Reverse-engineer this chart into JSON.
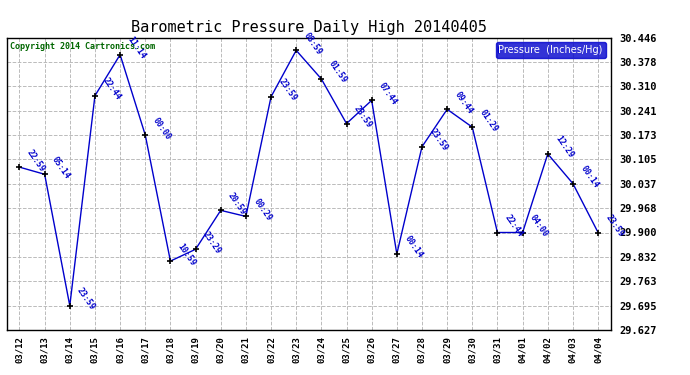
{
  "title": "Barometric Pressure Daily High 20140405",
  "copyright": "Copyright 2014 Cartronics.com",
  "legend_label": "Pressure  (Inches/Hg)",
  "ylim": [
    29.627,
    30.446
  ],
  "yticks": [
    29.627,
    29.695,
    29.763,
    29.832,
    29.9,
    29.968,
    30.037,
    30.105,
    30.173,
    30.241,
    30.31,
    30.378,
    30.446
  ],
  "background_color": "#ffffff",
  "line_color": "#0000cc",
  "marker_color": "#000000",
  "grid_color": "#bbbbbb",
  "x_labels": [
    "03/12",
    "03/13",
    "03/14",
    "03/15",
    "03/16",
    "03/17",
    "03/18",
    "03/19",
    "03/20",
    "03/21",
    "03/22",
    "03/23",
    "03/24",
    "03/25",
    "03/26",
    "03/27",
    "03/28",
    "03/29",
    "03/30",
    "03/31",
    "04/01",
    "04/02",
    "04/03",
    "04/04"
  ],
  "data_points": [
    {
      "date": "03/12",
      "value": 30.083,
      "label": "22:59"
    },
    {
      "date": "03/13",
      "value": 30.063,
      "label": "05:14"
    },
    {
      "date": "03/14",
      "value": 29.695,
      "label": "23:59"
    },
    {
      "date": "03/15",
      "value": 30.283,
      "label": "22:44"
    },
    {
      "date": "03/16",
      "value": 30.398,
      "label": "11:14"
    },
    {
      "date": "03/17",
      "value": 30.173,
      "label": "00:00"
    },
    {
      "date": "03/18",
      "value": 29.82,
      "label": "10:59"
    },
    {
      "date": "03/19",
      "value": 29.853,
      "label": "23:29"
    },
    {
      "date": "03/20",
      "value": 29.962,
      "label": "20:59"
    },
    {
      "date": "03/21",
      "value": 29.945,
      "label": "00:29"
    },
    {
      "date": "03/22",
      "value": 30.28,
      "label": "23:59"
    },
    {
      "date": "03/23",
      "value": 30.41,
      "label": "08:59"
    },
    {
      "date": "03/24",
      "value": 30.33,
      "label": "01:59"
    },
    {
      "date": "03/25",
      "value": 30.205,
      "label": "23:59"
    },
    {
      "date": "03/26",
      "value": 30.27,
      "label": "07:44"
    },
    {
      "date": "03/27",
      "value": 29.84,
      "label": "00:14"
    },
    {
      "date": "03/28",
      "value": 30.14,
      "label": "23:59"
    },
    {
      "date": "03/29",
      "value": 30.245,
      "label": "09:44"
    },
    {
      "date": "03/30",
      "value": 30.195,
      "label": "01:29"
    },
    {
      "date": "03/31",
      "value": 29.9,
      "label": "22:44"
    },
    {
      "date": "04/01",
      "value": 29.9,
      "label": "04:00"
    },
    {
      "date": "04/02",
      "value": 30.12,
      "label": "12:29"
    },
    {
      "date": "04/03",
      "value": 30.037,
      "label": "00:14"
    },
    {
      "date": "04/04",
      "value": 29.9,
      "label": "23:59"
    }
  ]
}
